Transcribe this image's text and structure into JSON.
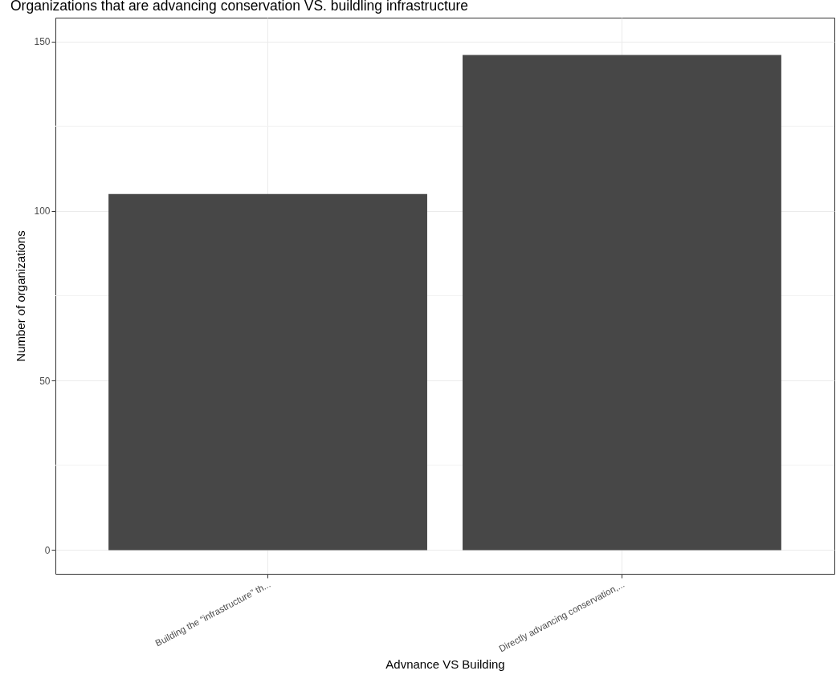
{
  "chart_data": {
    "type": "bar",
    "title": "Organizations that are advancing conservation VS. buildling infrastructure",
    "xlabel": "Advnance VS Building",
    "ylabel": "Number of organizations",
    "categories": [
      "Building the “infrastructure” th...",
      "Directly advancing conservation,..."
    ],
    "values": [
      105,
      146
    ],
    "color": "#474747",
    "ylim": [
      -7,
      157
    ],
    "yticks": [
      0,
      {
        "value": 25,
        "label": null
      },
      50,
      {
        "value": 75,
        "label": null
      },
      100,
      {
        "value": 125,
        "label": null
      },
      150
    ],
    "grid": true
  }
}
